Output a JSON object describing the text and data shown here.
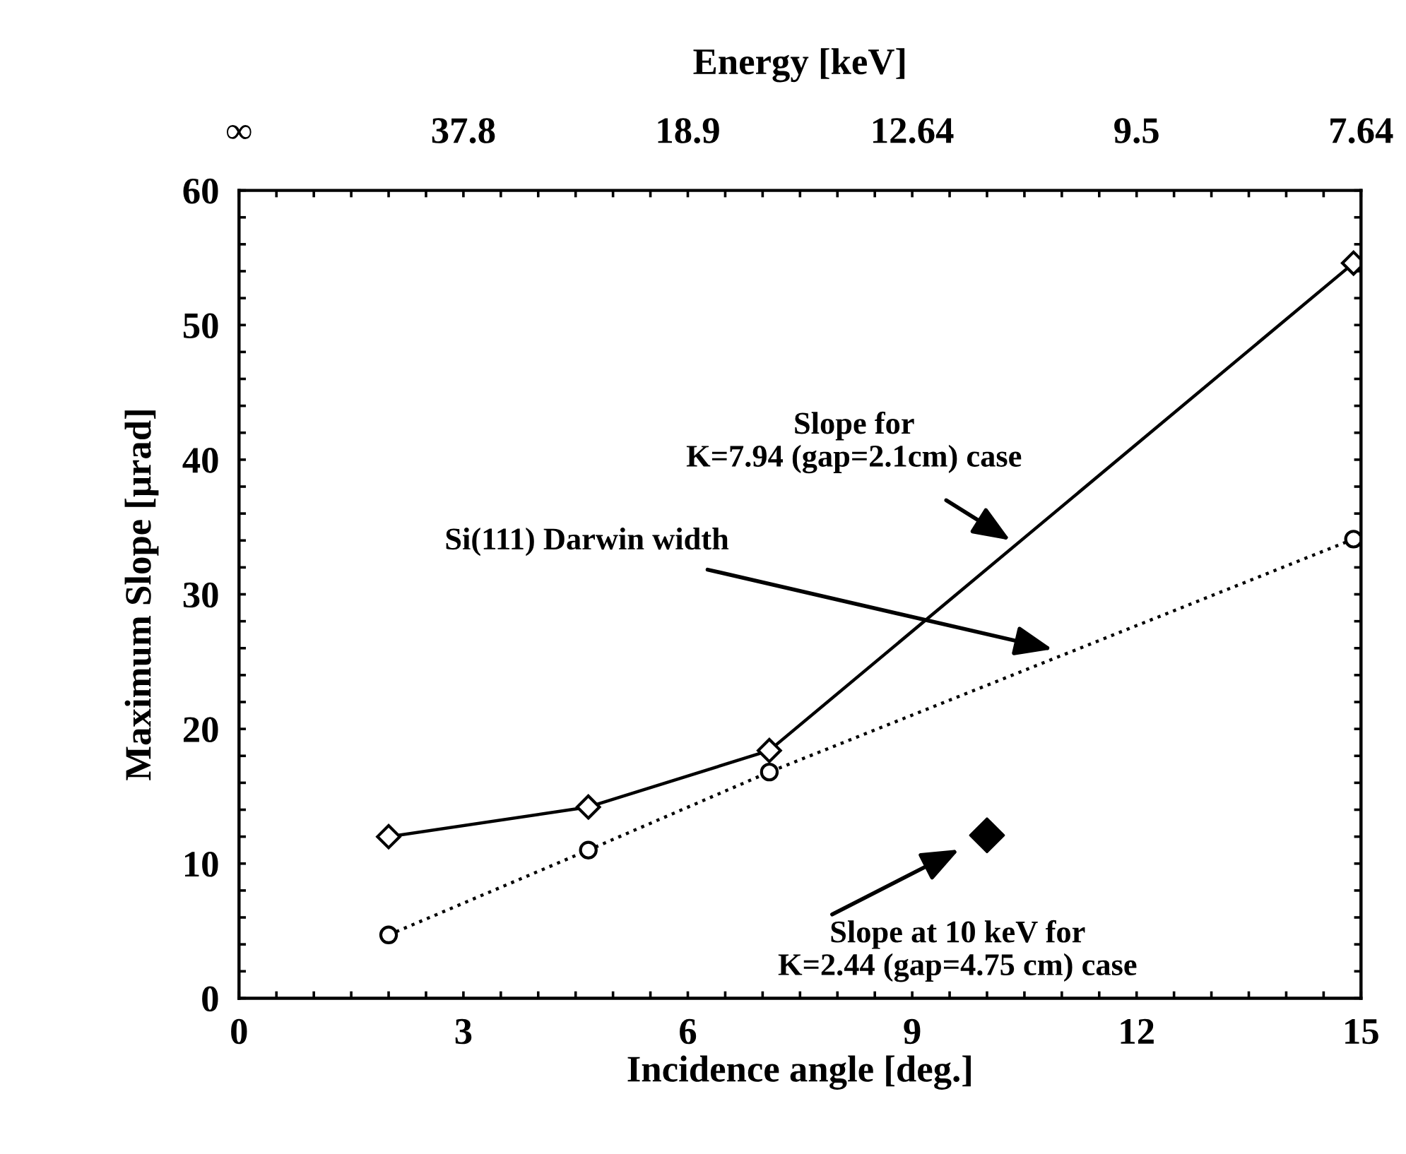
{
  "chart_data": {
    "type": "line",
    "xlabel": "Incidence angle [deg.]",
    "ylabel": "Maximum Slope [μrad]",
    "xlim": [
      0,
      15
    ],
    "ylim": [
      0,
      60
    ],
    "xticks": [
      0,
      {
        "value": 0.5,
        "label": null
      },
      {
        "value": 1,
        "label": null
      },
      {
        "value": 1.5,
        "label": null
      },
      {
        "value": 2,
        "label": null
      },
      {
        "value": 2.5,
        "label": null
      },
      3,
      {
        "value": 3.5,
        "label": null
      },
      {
        "value": 4,
        "label": null
      },
      {
        "value": 4.5,
        "label": null
      },
      {
        "value": 5,
        "label": null
      },
      {
        "value": 5.5,
        "label": null
      },
      6,
      {
        "value": 6.5,
        "label": null
      },
      {
        "value": 7,
        "label": null
      },
      {
        "value": 7.5,
        "label": null
      },
      {
        "value": 8,
        "label": null
      },
      {
        "value": 8.5,
        "label": null
      },
      9,
      {
        "value": 9.5,
        "label": null
      },
      {
        "value": 10,
        "label": null
      },
      {
        "value": 10.5,
        "label": null
      },
      {
        "value": 11,
        "label": null
      },
      {
        "value": 11.5,
        "label": null
      },
      12,
      {
        "value": 12.5,
        "label": null
      },
      {
        "value": 13,
        "label": null
      },
      {
        "value": 13.5,
        "label": null
      },
      {
        "value": 14,
        "label": null
      },
      {
        "value": 14.5,
        "label": null
      },
      15
    ],
    "yticks": [
      0,
      {
        "value": 2,
        "label": null
      },
      {
        "value": 4,
        "label": null
      },
      {
        "value": 6,
        "label": null
      },
      {
        "value": 8,
        "label": null
      },
      10,
      {
        "value": 12,
        "label": null
      },
      {
        "value": 14,
        "label": null
      },
      {
        "value": 16,
        "label": null
      },
      {
        "value": 18,
        "label": null
      },
      20,
      {
        "value": 22,
        "label": null
      },
      {
        "value": 24,
        "label": null
      },
      {
        "value": 26,
        "label": null
      },
      {
        "value": 28,
        "label": null
      },
      30,
      {
        "value": 32,
        "label": null
      },
      {
        "value": 34,
        "label": null
      },
      {
        "value": 36,
        "label": null
      },
      {
        "value": 38,
        "label": null
      },
      40,
      {
        "value": 42,
        "label": null
      },
      {
        "value": 44,
        "label": null
      },
      {
        "value": 46,
        "label": null
      },
      {
        "value": 48,
        "label": null
      },
      50,
      {
        "value": 52,
        "label": null
      },
      {
        "value": 54,
        "label": null
      },
      {
        "value": 56,
        "label": null
      },
      {
        "value": 58,
        "label": null
      },
      60
    ],
    "grid": false,
    "legend": false,
    "series": [
      {
        "color": "#000000",
        "marker": "diamond",
        "line_style": "solid",
        "x": [
          2.0,
          4.67,
          7.09,
          14.9
        ],
        "values": [
          12.0,
          14.2,
          18.4,
          54.6
        ]
      },
      {
        "type": "line",
        "color": "#000000",
        "marker": "circle",
        "line_style": "dotted",
        "x": [
          2.0,
          4.67,
          7.09,
          14.9
        ],
        "values": [
          4.7,
          11.0,
          16.8,
          34.1
        ]
      },
      {
        "type": "scatter",
        "color": "#000000",
        "marker": "diamond",
        "x": [
          10.0
        ],
        "values": [
          12.1
        ]
      }
    ],
    "annotations": [
      {
        "text": "Slope for\nK=7.94 (gap=2.1cm) case",
        "x": 10.4,
        "y": 33.7
      },
      "Si(111) Darwin width",
      {
        "text": "Slope at 10 keV for\nK=2.44 (gap=4.75 cm) case",
        "x": 10.0,
        "y": 12.1
      },
      "Energy [keV]",
      "∞",
      "37.8",
      "18.9",
      "12.64",
      "9.5",
      "7.64"
    ]
  }
}
